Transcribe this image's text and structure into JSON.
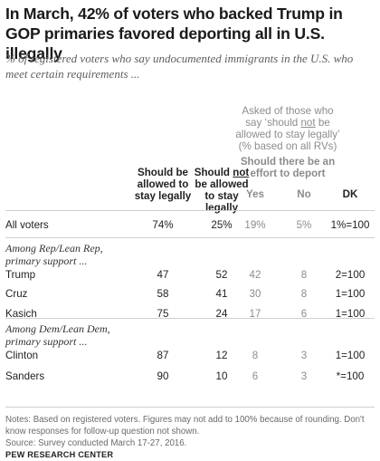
{
  "title": "In March, 42% of voters who backed Trump in GOP primaries favored deporting all in U.S. illegally",
  "subtitle": "% of registered voters who say undocumented immigrants in the U.S. who meet certain requirements ...",
  "headers": {
    "allowed": "Should be allowed to stay legally",
    "not_allowed_pre": "Should ",
    "not_allowed_not": "not",
    "not_allowed_post": " be allowed to stay legally",
    "asked_line1": "Asked of those who",
    "asked_line2_pre": "say ‘should ",
    "asked_line2_not": "not",
    "asked_line2_post": " be",
    "asked_line3": "allowed to stay legally’",
    "asked_line4": "(% based on all RVs)",
    "effort": "Should there be an effort to deport",
    "yes": "Yes",
    "no": "No",
    "dk": "DK"
  },
  "groups": {
    "rep": "Among Rep/Lean Rep, primary support ...",
    "dem": "Among Dem/Lean Dem, primary support ..."
  },
  "rows": [
    {
      "label": "All voters",
      "allowed": "74%",
      "not_allowed": "25%",
      "yes": "19%",
      "no": "5%",
      "dk": "1%=100"
    },
    {
      "label": "Trump",
      "allowed": "47",
      "not_allowed": "52",
      "yes": "42",
      "no": "8",
      "dk": "2=100"
    },
    {
      "label": "Cruz",
      "allowed": "58",
      "not_allowed": "41",
      "yes": "30",
      "no": "8",
      "dk": "1=100"
    },
    {
      "label": "Kasich",
      "allowed": "75",
      "not_allowed": "24",
      "yes": "17",
      "no": "6",
      "dk": "1=100"
    },
    {
      "label": "Clinton",
      "allowed": "87",
      "not_allowed": "12",
      "yes": "8",
      "no": "3",
      "dk": "1=100"
    },
    {
      "label": "Sanders",
      "allowed": "90",
      "not_allowed": "10",
      "yes": "6",
      "no": "3",
      "dk": "*=100"
    }
  ],
  "notes": "Notes: Based on registered voters. Figures may not add to 100% because of rounding. Don't know responses for follow-up question not shown.",
  "source": "Source: Survey conducted March 17-27, 2016.",
  "brand": "PEW RESEARCH CENTER",
  "chart_data": {
    "type": "table",
    "title": "In March, 42% of voters who backed Trump in GOP primaries favored deporting all in U.S. illegally",
    "columns": [
      "Should be allowed to stay legally",
      "Should not be allowed to stay legally",
      "Yes",
      "No",
      "DK"
    ],
    "rows": [
      {
        "label": "All voters",
        "values": [
          "74%",
          "25%",
          "19%",
          "5%",
          "1%=100"
        ]
      },
      {
        "label": "Trump",
        "values": [
          "47",
          "52",
          "42",
          "8",
          "2=100"
        ]
      },
      {
        "label": "Cruz",
        "values": [
          "58",
          "41",
          "30",
          "8",
          "1=100"
        ]
      },
      {
        "label": "Kasich",
        "values": [
          "75",
          "24",
          "17",
          "6",
          "1=100"
        ]
      },
      {
        "label": "Clinton",
        "values": [
          "87",
          "12",
          "8",
          "3",
          "1=100"
        ]
      },
      {
        "label": "Sanders",
        "values": [
          "90",
          "10",
          "6",
          "3",
          "*=100"
        ]
      }
    ]
  },
  "colors": {
    "text": "#222222",
    "muted": "#8c8c8c",
    "rule": "#cfcfcf"
  }
}
